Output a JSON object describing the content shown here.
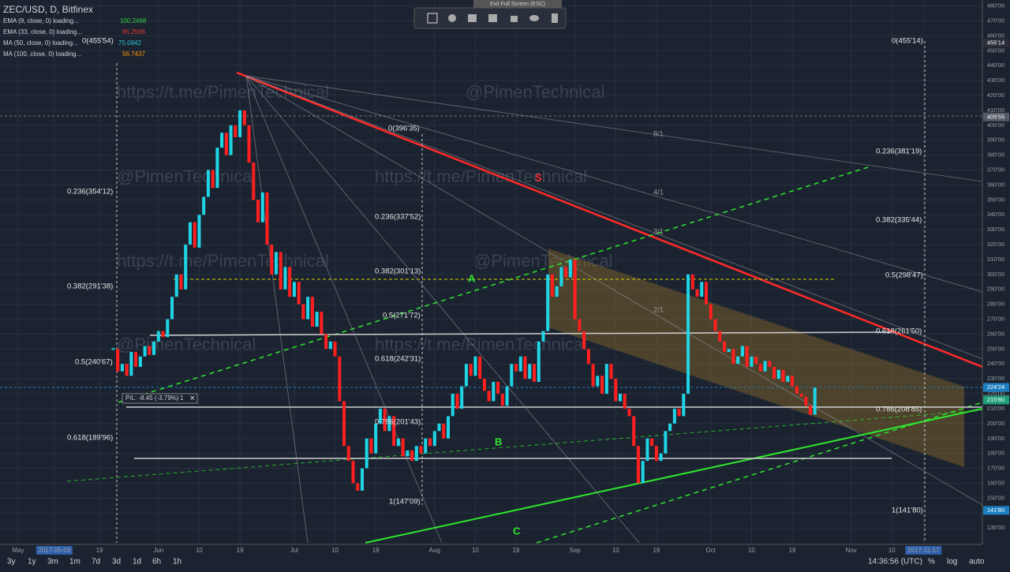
{
  "toolbar": {
    "exit": "Exit Full Screen (ESC)"
  },
  "legend": {
    "symbol": "ZEC/USD, D, Bitfinex",
    "studies": [
      {
        "name": "EMA (9, close, 0) loading...",
        "value": "100.2468",
        "color": "#2ecc40"
      },
      {
        "name": "EMA (33, close, 0) loading...",
        "value": "85.2566",
        "color": "#e53935"
      },
      {
        "name": "MA (50, close, 0) loading...",
        "value": "75.0942",
        "color": "#26c6da"
      },
      {
        "name": "MA (100, close, 0) loading...",
        "value": "56.7437",
        "color": "#ff9800"
      }
    ]
  },
  "position": {
    "pl": "P/L: -8.45 (-3.79%)",
    "qty": "1"
  },
  "watermarks": [
    "https://t.me/PimenTechnical",
    "@PimenTechnical",
    "@PimenTechnical",
    "https://t.me/PimenTechnical",
    "https://t.me/PimenTechnical",
    "@PimenTechnical",
    "@PimenTechnical",
    "https://t.me/PimenTechnical"
  ],
  "bottom": {
    "ranges": [
      "3y",
      "1y",
      "3m",
      "1m",
      "7d",
      "3d",
      "1d",
      "6h",
      "1h"
    ],
    "time": "14:36:56 (UTC)",
    "pct": "%",
    "log": "log",
    "auto": "auto"
  },
  "chart_data": {
    "type": "candlestick",
    "title": "ZEC/USD, D, Bitfinex",
    "up_color": "#1fd5e6",
    "down_color": "#ff1f1f",
    "xlim": [
      "2017-04-27",
      "2017-11-30"
    ],
    "ylim": [
      119,
      484
    ],
    "x": [
      "2017-05-22",
      "2017-05-23",
      "2017-05-24",
      "2017-05-25",
      "2017-05-26",
      "2017-05-27",
      "2017-05-28",
      "2017-05-29",
      "2017-05-30",
      "2017-05-31",
      "2017-06-01",
      "2017-06-02",
      "2017-06-03",
      "2017-06-04",
      "2017-06-05",
      "2017-06-06",
      "2017-06-07",
      "2017-06-08",
      "2017-06-09",
      "2017-06-10",
      "2017-06-11",
      "2017-06-12",
      "2017-06-13",
      "2017-06-14",
      "2017-06-15",
      "2017-06-16",
      "2017-06-17",
      "2017-06-18",
      "2017-06-19",
      "2017-06-20",
      "2017-06-21",
      "2017-06-22",
      "2017-06-23",
      "2017-06-24",
      "2017-06-25",
      "2017-06-26",
      "2017-06-27",
      "2017-06-28",
      "2017-06-29",
      "2017-06-30",
      "2017-07-01",
      "2017-07-02",
      "2017-07-03",
      "2017-07-04",
      "2017-07-05",
      "2017-07-06",
      "2017-07-07",
      "2017-07-08",
      "2017-07-09",
      "2017-07-10",
      "2017-07-11",
      "2017-07-12",
      "2017-07-13",
      "2017-07-14",
      "2017-07-15",
      "2017-07-16",
      "2017-07-17",
      "2017-07-18",
      "2017-07-19",
      "2017-07-20",
      "2017-07-21",
      "2017-07-22",
      "2017-07-23",
      "2017-07-24",
      "2017-07-25",
      "2017-07-26",
      "2017-07-27",
      "2017-07-28",
      "2017-07-29",
      "2017-07-30",
      "2017-07-31",
      "2017-08-01",
      "2017-08-02",
      "2017-08-03",
      "2017-08-04",
      "2017-08-05",
      "2017-08-06",
      "2017-08-07",
      "2017-08-08",
      "2017-08-09",
      "2017-08-10",
      "2017-08-11",
      "2017-08-12",
      "2017-08-13",
      "2017-08-14",
      "2017-08-15",
      "2017-08-16",
      "2017-08-17",
      "2017-08-18",
      "2017-08-19",
      "2017-08-20",
      "2017-08-21",
      "2017-08-22",
      "2017-08-23",
      "2017-08-24",
      "2017-08-25",
      "2017-08-26",
      "2017-08-27",
      "2017-08-28",
      "2017-08-29",
      "2017-08-30",
      "2017-08-31",
      "2017-09-01",
      "2017-09-02",
      "2017-09-03",
      "2017-09-04",
      "2017-09-05",
      "2017-09-06",
      "2017-09-07",
      "2017-09-08",
      "2017-09-09",
      "2017-09-10",
      "2017-09-11",
      "2017-09-12",
      "2017-09-13",
      "2017-09-14",
      "2017-09-15",
      "2017-09-16",
      "2017-09-17",
      "2017-09-18",
      "2017-09-19",
      "2017-09-20",
      "2017-09-21",
      "2017-09-22",
      "2017-09-23",
      "2017-09-24",
      "2017-09-25",
      "2017-09-26",
      "2017-09-27",
      "2017-09-28",
      "2017-09-29",
      "2017-09-30",
      "2017-10-01",
      "2017-10-02",
      "2017-10-03",
      "2017-10-04",
      "2017-10-05",
      "2017-10-06",
      "2017-10-07",
      "2017-10-08",
      "2017-10-09",
      "2017-10-10",
      "2017-10-11",
      "2017-10-12",
      "2017-10-13",
      "2017-10-14",
      "2017-10-15",
      "2017-10-16",
      "2017-10-17",
      "2017-10-18",
      "2017-10-19",
      "2017-10-20",
      "2017-10-21",
      "2017-10-22",
      "2017-10-23",
      "2017-10-24"
    ],
    "close": [
      250,
      235,
      240,
      232,
      248,
      238,
      245,
      252,
      246,
      255,
      262,
      258,
      270,
      285,
      300,
      290,
      320,
      335,
      318,
      340,
      352,
      370,
      358,
      385,
      395,
      380,
      400,
      392,
      410,
      400,
      375,
      350,
      335,
      355,
      320,
      300,
      315,
      290,
      305,
      285,
      295,
      280,
      270,
      285,
      265,
      275,
      260,
      250,
      255,
      245,
      215,
      185,
      175,
      160,
      155,
      170,
      190,
      180,
      200,
      210,
      195,
      205,
      185,
      190,
      178,
      182,
      175,
      185,
      180,
      190,
      185,
      195,
      200,
      190,
      205,
      220,
      210,
      225,
      240,
      232,
      245,
      230,
      222,
      215,
      228,
      220,
      212,
      225,
      240,
      235,
      245,
      230,
      240,
      228,
      255,
      262,
      300,
      285,
      292,
      305,
      298,
      310,
      270,
      262,
      250,
      240,
      225,
      232,
      220,
      240,
      230,
      215,
      220,
      210,
      205,
      185,
      160,
      175,
      190,
      185,
      175,
      180,
      195,
      200,
      210,
      205,
      220,
      300,
      290,
      285,
      295,
      280,
      270,
      262,
      255,
      248,
      250,
      240,
      245,
      252,
      238,
      245,
      240,
      235,
      242,
      238,
      230,
      236,
      228,
      232,
      225,
      220,
      218,
      212,
      206,
      224
    ],
    "xticks": [
      {
        "value": "2017-05-01",
        "label": "May"
      },
      {
        "value": "2017-05-09",
        "label": "2017-05-09"
      },
      {
        "value": "2017-05-19",
        "label": "19"
      },
      {
        "value": "2017-06-01",
        "label": "Jun"
      },
      {
        "value": "2017-06-10",
        "label": "10"
      },
      {
        "value": "2017-06-19",
        "label": "19"
      },
      {
        "value": "2017-07-01",
        "label": "Jul"
      },
      {
        "value": "2017-07-10",
        "label": "10"
      },
      {
        "value": "2017-07-19",
        "label": "19"
      },
      {
        "value": "2017-08-01",
        "label": "Aug"
      },
      {
        "value": "2017-08-10",
        "label": "10"
      },
      {
        "value": "2017-08-19",
        "label": "19"
      },
      {
        "value": "2017-09-01",
        "label": "Sep"
      },
      {
        "value": "2017-09-10",
        "label": "10"
      },
      {
        "value": "2017-09-19",
        "label": "19"
      },
      {
        "value": "2017-10-01",
        "label": "Oct"
      },
      {
        "value": "2017-10-10",
        "label": "10"
      },
      {
        "value": "2017-10-19",
        "label": "19"
      },
      {
        "value": "2017-11-01",
        "label": "Nov"
      },
      {
        "value": "2017-11-10",
        "label": "10"
      },
      {
        "value": "2017-11-17",
        "label": "2017-11-17"
      }
    ],
    "yticks": [
      {
        "value": 130,
        "label": "130'00"
      },
      {
        "value": 140,
        "label": "140'00"
      },
      {
        "value": 150,
        "label": "150'00"
      },
      {
        "value": 160,
        "label": "160'00"
      },
      {
        "value": 170,
        "label": "170'00"
      },
      {
        "value": 180,
        "label": "180'00"
      },
      {
        "value": 190,
        "label": "190'00"
      },
      {
        "value": 200,
        "label": "200'00"
      },
      {
        "value": 210,
        "label": "210'00"
      },
      {
        "value": 220,
        "label": "220'00"
      },
      {
        "value": 230,
        "label": "230'00"
      },
      {
        "value": 240,
        "label": "240'00"
      },
      {
        "value": 250,
        "label": "250'00"
      },
      {
        "value": 260,
        "label": "260'00"
      },
      {
        "value": 270,
        "label": "270'00"
      },
      {
        "value": 280,
        "label": "280'00"
      },
      {
        "value": 290,
        "label": "290'00"
      },
      {
        "value": 300,
        "label": "300'00"
      },
      {
        "value": 310,
        "label": "310'00"
      },
      {
        "value": 320,
        "label": "320'00"
      },
      {
        "value": 330,
        "label": "330'00"
      },
      {
        "value": 340,
        "label": "340'00"
      },
      {
        "value": 350,
        "label": "350'00"
      },
      {
        "value": 360,
        "label": "360'00"
      },
      {
        "value": 370,
        "label": "370'00"
      },
      {
        "value": 380,
        "label": "380'00"
      },
      {
        "value": 390,
        "label": "390'00"
      },
      {
        "value": 400,
        "label": "400'00"
      },
      {
        "value": 410,
        "label": "410'00"
      },
      {
        "value": 420,
        "label": "420'00"
      },
      {
        "value": 430,
        "label": "430'00"
      },
      {
        "value": 440,
        "label": "440'00"
      },
      {
        "value": 450,
        "label": "450'00"
      },
      {
        "value": 460,
        "label": "460'00"
      },
      {
        "value": 470,
        "label": "470'00"
      },
      {
        "value": 480,
        "label": "480'00"
      }
    ],
    "price_tags": [
      {
        "value": 455.14,
        "label": "455'14",
        "color": "#2a2e39"
      },
      {
        "value": 405.55,
        "label": "405'55",
        "color": "#555b66"
      },
      {
        "value": 224.24,
        "label": "224'24",
        "color": "#1b7fbf"
      },
      {
        "value": 216.37,
        "label": "216'37",
        "color": "#4a4f58"
      },
      {
        "value": 215.8,
        "label": "215'80",
        "color": "#1f9e7a"
      },
      {
        "value": 141.8,
        "label": "141'80",
        "color": "#1b7fbf"
      }
    ],
    "annotations": [
      "0(455'54)",
      "0.236(354'12)",
      "0.382(291'38)",
      "0.5(240'67)",
      "0.618(189'96)",
      "0(396'35)",
      "0.236(337'52)",
      "0.382(301'13)",
      "0.5(271'72)",
      "0.618(242'31)",
      "0.786(201'43)",
      "1(147'09)",
      "0(455'14)",
      "0.236(381'19)",
      "0.382(335'44)",
      "0.5(298'47)",
      "0.618(261'50)",
      "0.786(208'85)",
      "1(141'80)",
      "8/1",
      "4/1",
      "3/1",
      "2/1"
    ],
    "line_labels": [
      "S",
      "A",
      "B",
      "C"
    ]
  }
}
